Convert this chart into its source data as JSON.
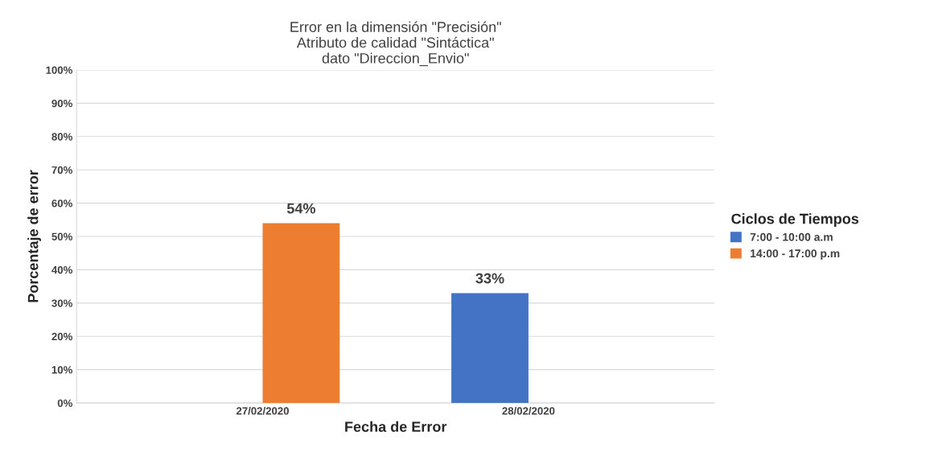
{
  "chart_data": {
    "type": "bar",
    "title": "Error en la dimensión \"Precisión\"\nAtributo de calidad \"Sintáctica\"\ndato \"Direccion_Envio\"",
    "xlabel": "Fecha de Error",
    "ylabel": "Porcentaje de error",
    "legend_title": "Ciclos de Tiempos",
    "categories": [
      "27/02/2020",
      "28/02/2020"
    ],
    "series": [
      {
        "name": "7:00 - 10:00 a.m",
        "color": "#4472c4",
        "values": [
          null,
          33
        ],
        "value_labels": [
          null,
          "33%"
        ]
      },
      {
        "name": "14:00 - 17:00 p.m",
        "color": "#ed7d31",
        "values": [
          54,
          null
        ],
        "value_labels": [
          "54%",
          null
        ]
      }
    ],
    "ylim": [
      0,
      100
    ],
    "yticks": [
      {
        "value": 0,
        "label": "0%"
      },
      {
        "value": 10,
        "label": "10%"
      },
      {
        "value": 20,
        "label": "20%"
      },
      {
        "value": 30,
        "label": "30%"
      },
      {
        "value": 40,
        "label": "40%"
      },
      {
        "value": 50,
        "label": "50%"
      },
      {
        "value": 60,
        "label": "60%"
      },
      {
        "value": 70,
        "label": "70%"
      },
      {
        "value": 80,
        "label": "80%"
      },
      {
        "value": 90,
        "label": "90%"
      },
      {
        "value": 100,
        "label": "100%"
      }
    ],
    "grid": "y",
    "legend": "right"
  }
}
